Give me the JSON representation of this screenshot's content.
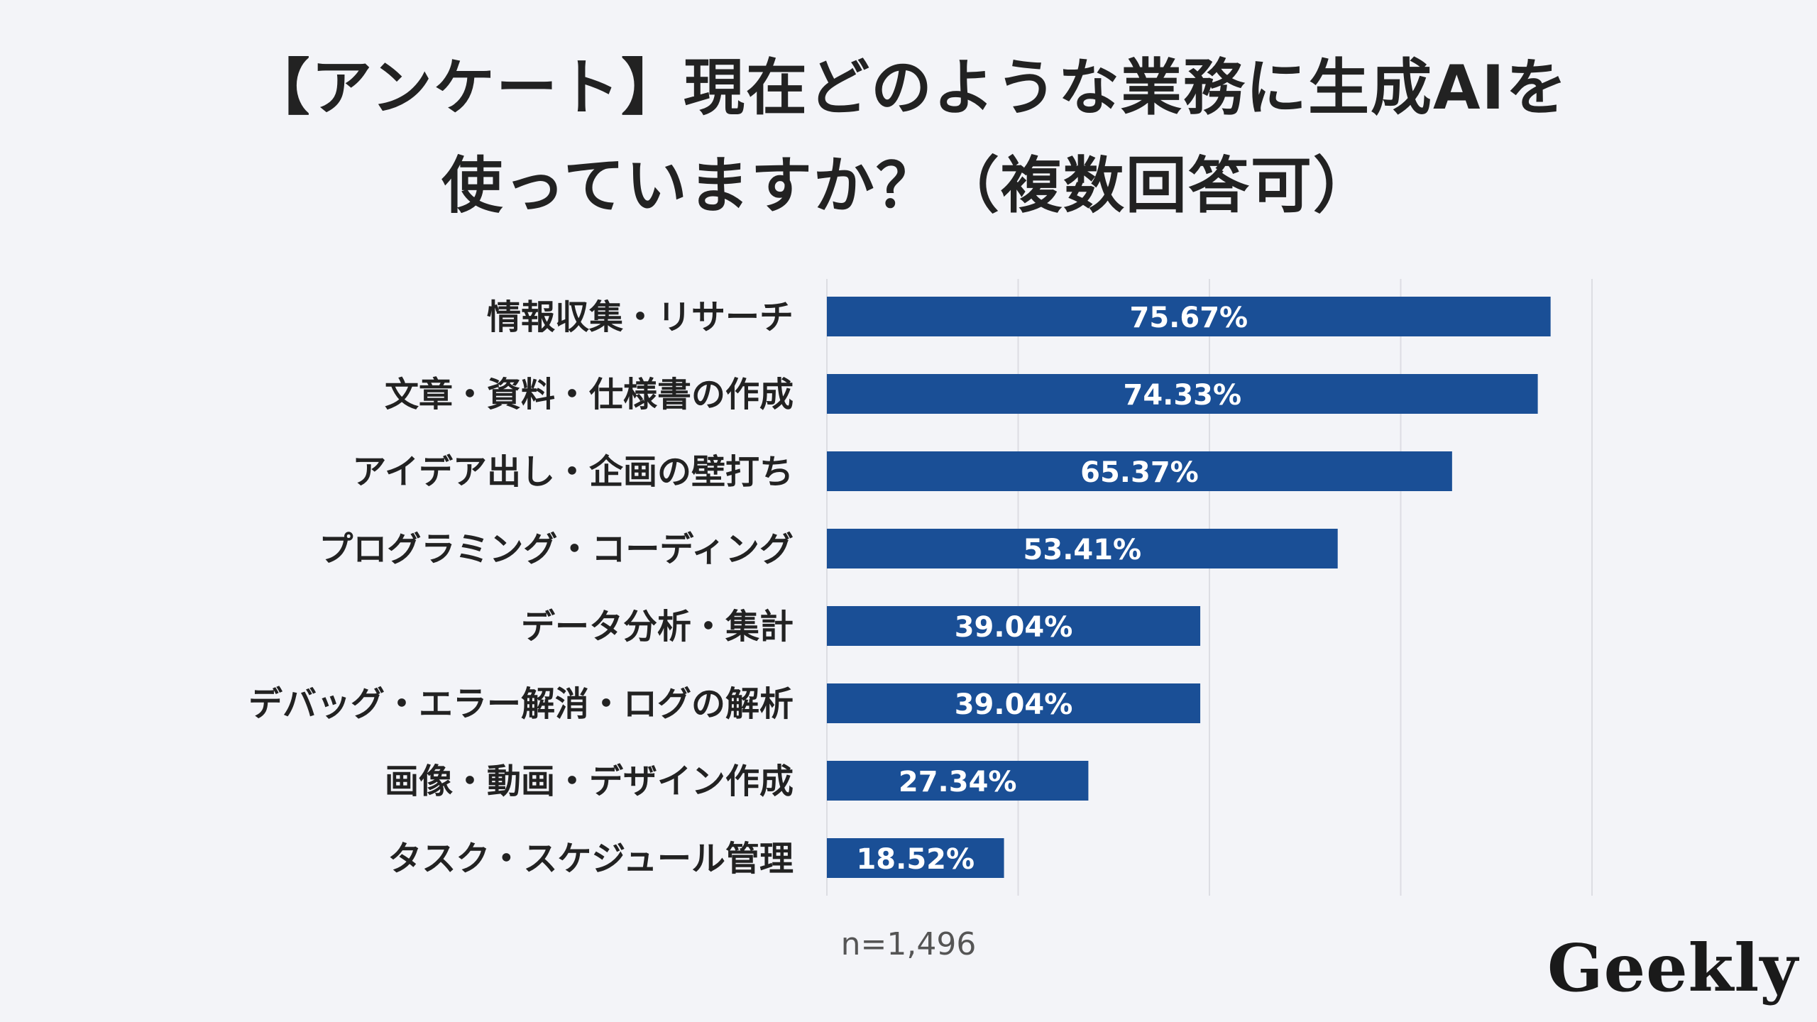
{
  "title": {
    "line1": "【アンケート】現在どのような業務に生成AIを",
    "line2": "使っていますか？（複数回答可）"
  },
  "note": "n=1,496",
  "logo": "Geekly",
  "colors": {
    "bar": "#1a4f96",
    "grid": "#dcdde3",
    "background": "#f3f4f8"
  },
  "chart_data": {
    "type": "bar",
    "orientation": "horizontal",
    "categories": [
      "情報収集・リサーチ",
      "文章・資料・仕様書の作成",
      "アイデア出し・企画の壁打ち",
      "プログラミング・コーディング",
      "データ分析・集計",
      "デバッグ・エラー解消・ログの解析",
      "画像・動画・デザイン作成",
      "タスク・スケジュール管理"
    ],
    "values": [
      75.67,
      74.33,
      65.37,
      53.41,
      39.04,
      39.04,
      27.34,
      18.52
    ],
    "labels": [
      "75.67%",
      "74.33%",
      "65.37%",
      "53.41%",
      "39.04%",
      "39.04%",
      "27.34%",
      "18.52%"
    ],
    "xlim": [
      0,
      80
    ],
    "grid": true
  }
}
